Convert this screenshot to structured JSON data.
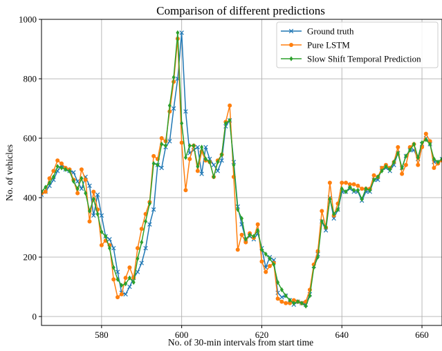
{
  "chart_data": {
    "type": "line",
    "title": "Comparison of different predictions",
    "xlabel": "No. of 30-min intervals from start time",
    "ylabel": "No. of vehicles",
    "xlim": [
      565,
      665
    ],
    "ylim": [
      -30,
      1000
    ],
    "xticks": [
      580,
      600,
      620,
      640,
      660
    ],
    "yticks": [
      0,
      200,
      400,
      600,
      800,
      1000
    ],
    "grid": true,
    "legend_position": "top-right",
    "x": [
      565,
      566,
      567,
      568,
      569,
      570,
      571,
      572,
      573,
      574,
      575,
      576,
      577,
      578,
      579,
      580,
      581,
      582,
      583,
      584,
      585,
      586,
      587,
      588,
      589,
      590,
      591,
      592,
      593,
      594,
      595,
      596,
      597,
      598,
      599,
      600,
      601,
      602,
      603,
      604,
      605,
      606,
      607,
      608,
      609,
      610,
      611,
      612,
      613,
      614,
      615,
      616,
      617,
      618,
      619,
      620,
      621,
      622,
      623,
      624,
      625,
      626,
      627,
      628,
      629,
      630,
      631,
      632,
      633,
      634,
      635,
      636,
      637,
      638,
      639,
      640,
      641,
      642,
      643,
      644,
      645,
      646,
      647,
      648,
      649,
      650,
      651,
      652,
      653,
      654,
      655,
      656,
      657,
      658,
      659,
      660,
      661,
      662,
      663,
      664,
      665
    ],
    "series": [
      {
        "name": "Ground truth",
        "color": "#1f77b4",
        "marker": "x",
        "values": [
          410,
          420,
          440,
          460,
          490,
          510,
          495,
          490,
          485,
          455,
          430,
          470,
          440,
          340,
          410,
          340,
          270,
          260,
          230,
          150,
          80,
          75,
          100,
          130,
          150,
          180,
          230,
          310,
          360,
          510,
          500,
          570,
          590,
          700,
          800,
          955,
          690,
          550,
          560,
          570,
          480,
          570,
          530,
          510,
          490,
          525,
          640,
          660,
          520,
          370,
          310,
          260,
          270,
          260,
          280,
          230,
          165,
          200,
          190,
          80,
          65,
          70,
          55,
          40,
          50,
          45,
          40,
          75,
          170,
          210,
          320,
          290,
          400,
          330,
          360,
          420,
          420,
          430,
          420,
          420,
          390,
          420,
          420,
          460,
          460,
          500,
          500,
          490,
          510,
          550,
          500,
          540,
          560,
          560,
          530,
          580,
          600,
          580,
          520,
          520,
          530
        ]
      },
      {
        "name": "Pure LSTM",
        "color": "#ff7f0e",
        "marker": "o",
        "values": [
          415,
          420,
          465,
          490,
          525,
          515,
          500,
          495,
          460,
          415,
          495,
          460,
          320,
          420,
          360,
          240,
          255,
          240,
          125,
          65,
          75,
          130,
          165,
          130,
          230,
          295,
          345,
          385,
          540,
          530,
          600,
          590,
          690,
          790,
          935,
          585,
          425,
          530,
          575,
          490,
          555,
          525,
          520,
          470,
          525,
          545,
          655,
          710,
          470,
          225,
          275,
          250,
          280,
          265,
          310,
          185,
          150,
          170,
          180,
          60,
          50,
          45,
          45,
          55,
          50,
          45,
          50,
          90,
          175,
          220,
          355,
          300,
          450,
          340,
          380,
          450,
          450,
          445,
          445,
          440,
          430,
          430,
          430,
          475,
          470,
          500,
          510,
          500,
          520,
          570,
          480,
          510,
          570,
          580,
          510,
          570,
          615,
          590,
          500,
          515,
          525
        ]
      },
      {
        "name": "Slow Shift Temporal Prediction",
        "color": "#2ca02c",
        "marker": "d",
        "values": [
          420,
          435,
          450,
          470,
          505,
          500,
          495,
          490,
          455,
          430,
          465,
          415,
          355,
          395,
          345,
          285,
          270,
          230,
          165,
          125,
          105,
          110,
          130,
          115,
          195,
          250,
          320,
          380,
          515,
          510,
          580,
          575,
          710,
          805,
          955,
          650,
          535,
          575,
          575,
          505,
          570,
          530,
          520,
          470,
          520,
          545,
          650,
          660,
          510,
          360,
          330,
          260,
          275,
          270,
          290,
          225,
          210,
          195,
          175,
          115,
          90,
          70,
          55,
          45,
          50,
          45,
          35,
          70,
          165,
          200,
          320,
          300,
          395,
          345,
          360,
          430,
          420,
          435,
          425,
          425,
          395,
          430,
          425,
          460,
          470,
          490,
          505,
          495,
          520,
          550,
          500,
          540,
          560,
          580,
          535,
          585,
          595,
          580,
          530,
          520,
          530
        ]
      }
    ]
  }
}
